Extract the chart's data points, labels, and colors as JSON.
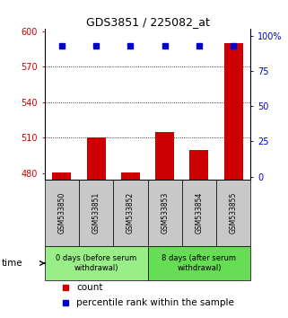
{
  "title": "GDS3851 / 225082_at",
  "samples": [
    "GSM533850",
    "GSM533851",
    "GSM533852",
    "GSM533853",
    "GSM533854",
    "GSM533855"
  ],
  "count_values": [
    481,
    510,
    481,
    515,
    500,
    590
  ],
  "percentile_values": [
    93,
    93,
    93,
    93,
    93,
    93
  ],
  "ylim_left": [
    475,
    602
  ],
  "ylim_right": [
    -2,
    105
  ],
  "yticks_left": [
    480,
    510,
    540,
    570,
    600
  ],
  "yticks_right": [
    0,
    25,
    50,
    75,
    100
  ],
  "groups": [
    {
      "label": "0 days (before serum\nwithdrawal)",
      "indices": [
        0,
        1,
        2
      ],
      "color": "#99ee88"
    },
    {
      "label": "8 days (after serum\nwithdrawal)",
      "indices": [
        3,
        4,
        5
      ],
      "color": "#66dd55"
    }
  ],
  "bar_color": "#cc0000",
  "dot_color": "#0000cc",
  "tick_label_color_left": "#cc0000",
  "tick_label_color_right": "#0000cc",
  "sample_box_color": "#c8c8c8",
  "title_color": "#000000",
  "legend_red_label": "count",
  "legend_blue_label": "percentile rank within the sample",
  "time_label": "time",
  "bar_width": 0.55,
  "dot_grid_lines": [
    510,
    540,
    570
  ],
  "figwidth": 3.21,
  "figheight": 3.54,
  "dpi": 100
}
